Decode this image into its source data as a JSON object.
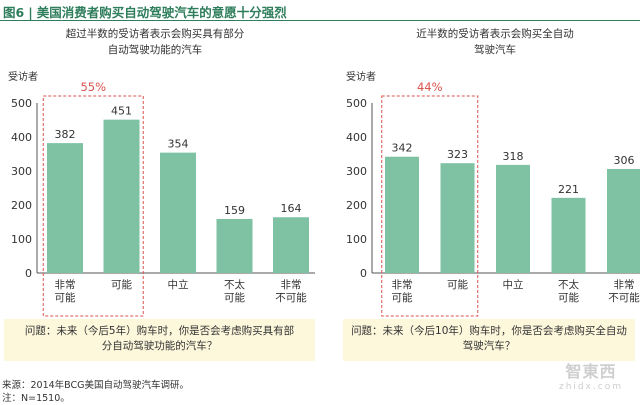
{
  "figure": {
    "label": "图6",
    "separator": "|",
    "title": "美国消费者购买自动驾驶汽车的意愿十分强烈"
  },
  "colors": {
    "bar": "#7ec1a3",
    "highlight": "#d9534f",
    "title": "#2e7d5b"
  },
  "chart_data": [
    {
      "type": "bar",
      "title_lines": [
        "超过半数的受访者表示会购买具有部分",
        "自动驾驶功能的汽车"
      ],
      "ylabel": "受访者",
      "ylim": [
        0,
        500
      ],
      "yticks": [
        0,
        100,
        200,
        300,
        400,
        500
      ],
      "categories": [
        [
          "非常",
          "可能"
        ],
        [
          "可能"
        ],
        [
          "中立"
        ],
        [
          "不太",
          "可能"
        ],
        [
          "非常",
          "不可能"
        ]
      ],
      "values": [
        382,
        451,
        354,
        159,
        164
      ],
      "highlight": {
        "label": "55%",
        "indices": [
          0,
          1
        ]
      },
      "grid": false
    },
    {
      "type": "bar",
      "title_lines": [
        "近半数的受访者表示会购买全自动",
        "驾驶汽车"
      ],
      "ylabel": "受访者",
      "ylim": [
        0,
        500
      ],
      "yticks": [
        0,
        100,
        200,
        300,
        400,
        500
      ],
      "categories": [
        [
          "非常",
          "可能"
        ],
        [
          "可能"
        ],
        [
          "中立"
        ],
        [
          "不太",
          "可能"
        ],
        [
          "非常",
          "不可能"
        ]
      ],
      "values": [
        342,
        323,
        318,
        221,
        306
      ],
      "highlight": {
        "label": "44%",
        "indices": [
          0,
          1
        ]
      },
      "grid": false
    }
  ],
  "questions": {
    "left": [
      "问题：未来（今后5年）购车时，你是否会考虑购买具有部",
      "分自动驾驶功能的汽车？"
    ],
    "right": [
      "问题：未来（今后10年）购车时，你是否会考虑购买全自动",
      "驾驶汽车？"
    ]
  },
  "footer": {
    "source": "来源：2014年BCG美国自动驾驶汽车调研。",
    "note": "注：N=1510。"
  },
  "watermark": {
    "main": "智東西",
    "sub": "zhidx.com"
  }
}
